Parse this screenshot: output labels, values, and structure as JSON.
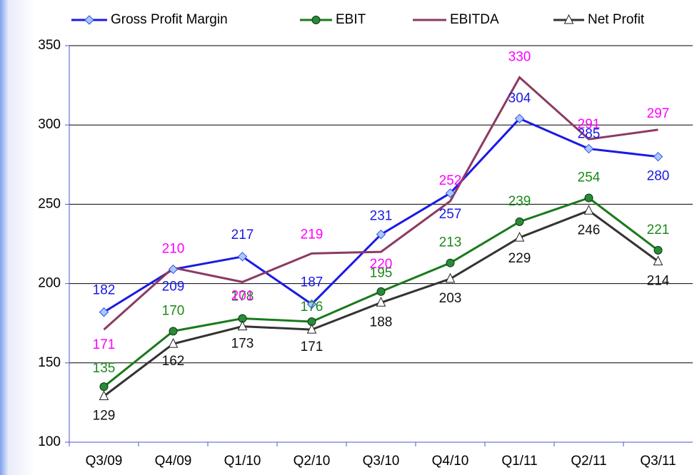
{
  "chart_data": {
    "type": "line",
    "categories": [
      "Q3/09",
      "Q4/09",
      "Q1/10",
      "Q2/10",
      "Q3/10",
      "Q4/10",
      "Q1/11",
      "Q2/11",
      "Q3/11"
    ],
    "series": [
      {
        "name": "Gross Profit Margin",
        "color": "#1a1ae6",
        "marker": "diamond",
        "label_color": "#1a1ae6",
        "values": [
          182,
          209,
          217,
          187,
          231,
          257,
          304,
          285,
          280
        ]
      },
      {
        "name": "EBIT",
        "color": "#1a7a1a",
        "marker": "circle",
        "label_color": "#1a8a1a",
        "values": [
          135,
          170,
          178,
          176,
          195,
          213,
          239,
          254,
          221
        ]
      },
      {
        "name": "EBITDA",
        "color": "#8b3a62",
        "marker": "none",
        "label_color": "#ff00ff",
        "values": [
          171,
          210,
          201,
          219,
          220,
          252,
          330,
          291,
          297
        ]
      },
      {
        "name": "Net Profit",
        "color": "#333333",
        "marker": "triangle",
        "label_color": "#111111",
        "values": [
          129,
          162,
          173,
          171,
          188,
          203,
          229,
          246,
          214
        ]
      }
    ],
    "ylim": [
      100,
      350
    ],
    "yticks": [
      100,
      150,
      200,
      250,
      300,
      350
    ],
    "grid": true,
    "legend": "top"
  }
}
